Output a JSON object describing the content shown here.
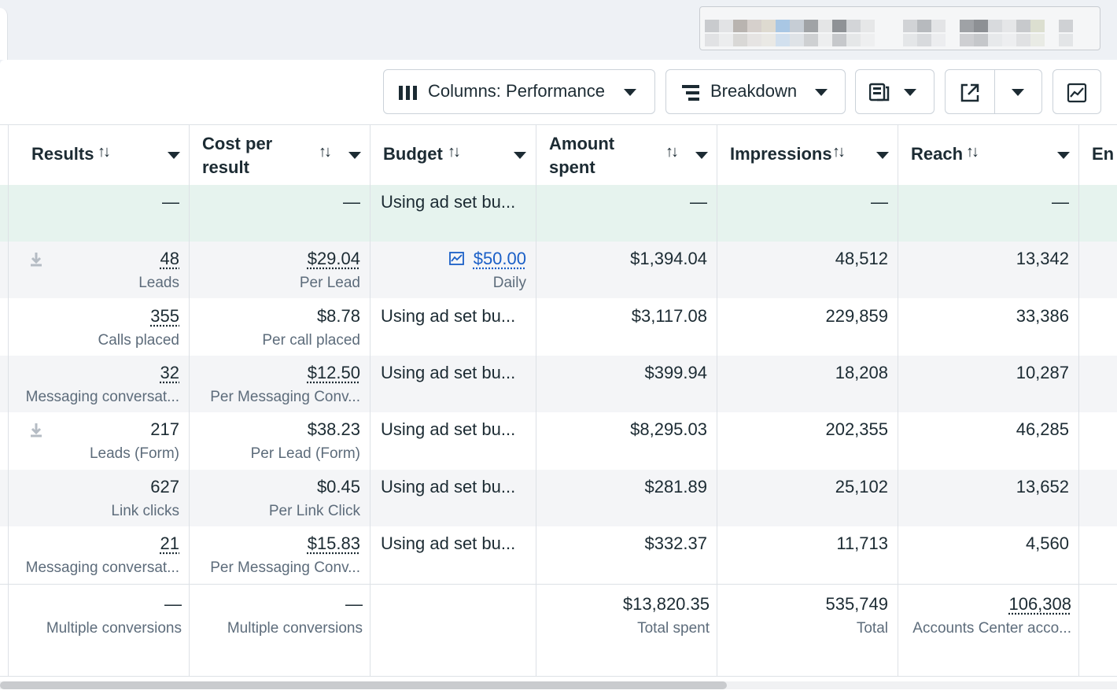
{
  "toolbar": {
    "columns_label": "Columns: Performance",
    "breakdown_label": "Breakdown"
  },
  "colors": {
    "summary_bg": "#e6f3ee",
    "alt_bg": "#f4f5f7",
    "link": "#1a5fc7"
  },
  "table": {
    "headers": {
      "results": "Results",
      "cost_line1": "Cost per",
      "cost_line2": "result",
      "budget": "Budget",
      "amount_line1": "Amount",
      "amount_line2": "spent",
      "impressions": "Impressions",
      "reach": "Reach",
      "next": "En"
    },
    "summary": {
      "dash": "—",
      "budget": "Using ad set bu..."
    },
    "rows": [
      {
        "results": "48",
        "results_sub": "Leads",
        "cost": "$29.04",
        "cost_sub": "Per Lead",
        "budget": "$50.00",
        "budget_sub": "Daily",
        "amount": "$1,394.04",
        "impressions": "48,512",
        "reach": "13,342"
      },
      {
        "results": "355",
        "results_sub": "Calls placed",
        "cost": "$8.78",
        "cost_sub": "Per call placed",
        "budget": "Using ad set bu...",
        "amount": "$3,117.08",
        "impressions": "229,859",
        "reach": "33,386"
      },
      {
        "results": "32",
        "results_sub": "Messaging conversat...",
        "cost": "$12.50",
        "cost_sub": "Per Messaging Conv...",
        "budget": "Using ad set bu...",
        "amount": "$399.94",
        "impressions": "18,208",
        "reach": "10,287"
      },
      {
        "results": "217",
        "results_sub": "Leads (Form)",
        "cost": "$38.23",
        "cost_sub": "Per Lead (Form)",
        "budget": "Using ad set bu...",
        "amount": "$8,295.03",
        "impressions": "202,355",
        "reach": "46,285"
      },
      {
        "results": "627",
        "results_sub": "Link clicks",
        "cost": "$0.45",
        "cost_sub": "Per Link Click",
        "budget": "Using ad set bu...",
        "amount": "$281.89",
        "impressions": "25,102",
        "reach": "13,652"
      },
      {
        "results": "21",
        "results_sub": "Messaging conversat...",
        "cost": "$15.83",
        "cost_sub": "Per Messaging Conv...",
        "budget": "Using ad set bu...",
        "amount": "$332.37",
        "impressions": "11,713",
        "reach": "4,560"
      }
    ],
    "totals": {
      "results": "—",
      "results_sub": "Multiple conversions",
      "cost": "—",
      "cost_sub": "Multiple conversions",
      "amount": "$13,820.35",
      "amount_sub": "Total spent",
      "impressions": "535,749",
      "impressions_sub": "Total",
      "reach": "106,308",
      "reach_sub": "Accounts Center acco..."
    }
  }
}
